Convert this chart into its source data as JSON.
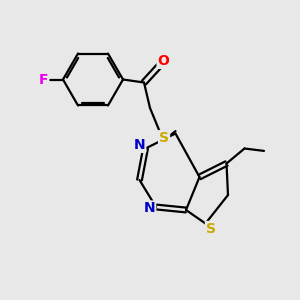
{
  "bg_color": "#e8e8e8",
  "atom_colors": {
    "F": "#ee00ee",
    "O": "#ff0000",
    "S": "#ccaa00",
    "N": "#0000cc",
    "C": "#000000"
  },
  "bond_color": "#000000",
  "bond_lw": 1.6,
  "figsize": [
    3.0,
    3.0
  ],
  "dpi": 100
}
